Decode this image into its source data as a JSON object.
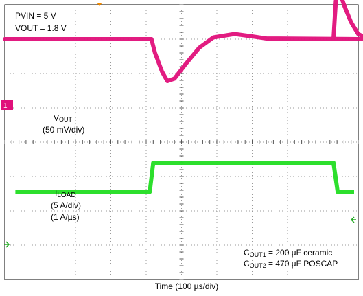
{
  "chart_data": {
    "type": "line",
    "xlabel": "Time (100 µs/div)",
    "x_divisions": 10,
    "y_divisions": 8,
    "grid": true,
    "conditions": [
      "PVIN = 5 V",
      "VOUT = 1.8 V"
    ],
    "channels": [
      {
        "marker": "1",
        "label_main": "V",
        "label_sub": "OUT",
        "scale": "(50 mV/div)",
        "color": "#e0107a",
        "baseline_div": 3.0,
        "points": [
          [
            0.0,
            3.0
          ],
          [
            4.15,
            3.0
          ],
          [
            4.25,
            2.6
          ],
          [
            4.45,
            2.05
          ],
          [
            4.6,
            1.78
          ],
          [
            4.8,
            1.85
          ],
          [
            5.1,
            2.25
          ],
          [
            5.5,
            2.75
          ],
          [
            5.9,
            3.05
          ],
          [
            6.5,
            3.15
          ],
          [
            7.0,
            3.08
          ],
          [
            7.4,
            3.02
          ],
          [
            10.0,
            3.0
          ]
        ],
        "load_step_x": 4.15,
        "load_release_x": 9.3,
        "release_points": [
          [
            9.3,
            3.0
          ],
          [
            9.38,
            3.6
          ],
          [
            9.45,
            4.1
          ],
          [
            9.55,
            4.45
          ],
          [
            9.7,
            4.35
          ],
          [
            10.0,
            3.95
          ],
          [
            10.4,
            3.5
          ],
          [
            10.85,
            3.15
          ],
          [
            11.3,
            3.05
          ],
          [
            12.0,
            3.0
          ]
        ]
      },
      {
        "label_main": "I",
        "label_sub": "LOAD",
        "scale": "(5 A/div)",
        "slew": "(1 A/µs)",
        "color": "#22dd22",
        "low_div": -1.45,
        "high_div": -0.6
      }
    ],
    "annotations": [
      {
        "prefix": "C",
        "sub": "OUT1",
        "text": " = 200 µF ceramic"
      },
      {
        "prefix": "C",
        "sub": "OUT2",
        "text": " = 470 µF POSCAP"
      }
    ]
  }
}
